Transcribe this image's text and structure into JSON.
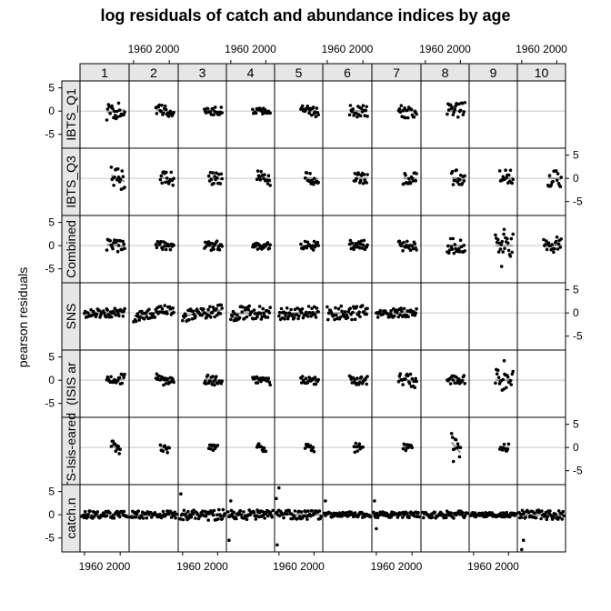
{
  "chart_data": {
    "type": "scatter",
    "title": "log residuals of catch and abundance indices by age",
    "ylabel": "pearson residuals",
    "xlabel": "",
    "ages": [
      "1",
      "2",
      "3",
      "4",
      "5",
      "6",
      "7",
      "8",
      "9",
      "10"
    ],
    "rows": [
      "IBTS_Q1",
      "IBTS_Q3",
      "Combined",
      "SNS",
      "(ISIS ar",
      "TS-Isis-eared",
      "catch.n"
    ],
    "x_ticks": [
      1960,
      2000
    ],
    "x_tick_labels": [
      "1960 2000",
      "1960 2000",
      "1960 2000",
      "1960 2000",
      "1960 2000"
    ],
    "y_ticks": [
      -5,
      0,
      5
    ],
    "y_tick_labels": [
      "-5",
      "0",
      "5"
    ],
    "xlim": [
      1955,
      2010
    ],
    "ylim": [
      -8,
      6.5
    ],
    "grid": "horizontal line at 0",
    "panels": [
      {
        "row": "IBTS_Q1",
        "age": "1",
        "years": [
          1985,
          2005
        ],
        "range": 1.8,
        "trend": -0.5
      },
      {
        "row": "IBTS_Q1",
        "age": "2",
        "years": [
          1985,
          2005
        ],
        "range": 1.2,
        "trend": 0.8
      },
      {
        "row": "IBTS_Q1",
        "age": "3",
        "years": [
          1985,
          2005
        ],
        "range": 1.0,
        "trend": 0.3
      },
      {
        "row": "IBTS_Q1",
        "age": "4",
        "years": [
          1985,
          2005
        ],
        "range": 0.6,
        "trend": 0.1
      },
      {
        "row": "IBTS_Q1",
        "age": "5",
        "years": [
          1985,
          2005
        ],
        "range": 1.0,
        "trend": 0.6
      },
      {
        "row": "IBTS_Q1",
        "age": "6",
        "years": [
          1985,
          2005
        ],
        "range": 1.3,
        "trend": 0.1
      },
      {
        "row": "IBTS_Q1",
        "age": "7",
        "years": [
          1985,
          2005
        ],
        "range": 1.8,
        "trend": -0.5
      },
      {
        "row": "IBTS_Q1",
        "age": "8",
        "years": [
          1985,
          2005
        ],
        "range": 2.0,
        "trend": 0.0
      },
      {
        "row": "IBTS_Q3",
        "age": "1",
        "years": [
          1990,
          2005
        ],
        "range": 2.2,
        "trend": 1.5
      },
      {
        "row": "IBTS_Q3",
        "age": "2",
        "years": [
          1990,
          2005
        ],
        "range": 1.5,
        "trend": 0.5
      },
      {
        "row": "IBTS_Q3",
        "age": "3",
        "years": [
          1990,
          2005
        ],
        "range": 1.5,
        "trend": 0.3
      },
      {
        "row": "IBTS_Q3",
        "age": "4",
        "years": [
          1990,
          2005
        ],
        "range": 1.5,
        "trend": 0.3
      },
      {
        "row": "IBTS_Q3",
        "age": "5",
        "years": [
          1990,
          2005
        ],
        "range": 1.5,
        "trend": 0.2
      },
      {
        "row": "IBTS_Q3",
        "age": "6",
        "years": [
          1990,
          2005
        ],
        "range": 1.2,
        "trend": 0.0
      },
      {
        "row": "IBTS_Q3",
        "age": "7",
        "years": [
          1990,
          2005
        ],
        "range": 1.3,
        "trend": 0.0
      },
      {
        "row": "IBTS_Q3",
        "age": "8",
        "years": [
          1990,
          2005
        ],
        "range": 1.8,
        "trend": 0.2
      },
      {
        "row": "IBTS_Q3",
        "age": "9",
        "years": [
          1990,
          2005
        ],
        "range": 1.8,
        "trend": -0.3
      },
      {
        "row": "IBTS_Q3",
        "age": "10",
        "years": [
          1990,
          2005
        ],
        "range": 1.8,
        "trend": 0.2
      },
      {
        "row": "Combined",
        "age": "1",
        "years": [
          1985,
          2005
        ],
        "range": 1.5,
        "trend": 0.5
      },
      {
        "row": "Combined",
        "age": "2",
        "years": [
          1985,
          2005
        ],
        "range": 1.0,
        "trend": 0.0
      },
      {
        "row": "Combined",
        "age": "3",
        "years": [
          1985,
          2005
        ],
        "range": 1.0,
        "trend": 0.0
      },
      {
        "row": "Combined",
        "age": "4",
        "years": [
          1985,
          2005
        ],
        "range": 0.8,
        "trend": 0.0
      },
      {
        "row": "Combined",
        "age": "5",
        "years": [
          1985,
          2005
        ],
        "range": 1.0,
        "trend": 0.0
      },
      {
        "row": "Combined",
        "age": "6",
        "years": [
          1985,
          2005
        ],
        "range": 1.2,
        "trend": 0.0
      },
      {
        "row": "Combined",
        "age": "7",
        "years": [
          1985,
          2005
        ],
        "range": 1.2,
        "trend": 0.0
      },
      {
        "row": "Combined",
        "age": "8",
        "years": [
          1985,
          2005
        ],
        "range": 1.8,
        "trend": 0.2
      },
      {
        "row": "Combined",
        "age": "9",
        "years": [
          1985,
          2005
        ],
        "range": 2.5,
        "trend": 0.0
      },
      {
        "row": "Combined",
        "age": "10",
        "years": [
          1985,
          2005
        ],
        "range": 1.8,
        "trend": -0.5
      },
      {
        "row": "SNS",
        "age": "1",
        "years": [
          1960,
          2005
        ],
        "range": 1.0,
        "trend": 0.0
      },
      {
        "row": "SNS",
        "age": "2",
        "years": [
          1960,
          2005
        ],
        "range": 1.2,
        "trend": -1.5
      },
      {
        "row": "SNS",
        "age": "3",
        "years": [
          1960,
          2005
        ],
        "range": 1.3,
        "trend": -1.5
      },
      {
        "row": "SNS",
        "age": "4",
        "years": [
          1960,
          2005
        ],
        "range": 1.5,
        "trend": -0.5
      },
      {
        "row": "SNS",
        "age": "5",
        "years": [
          1960,
          2005
        ],
        "range": 1.3,
        "trend": -0.5
      },
      {
        "row": "SNS",
        "age": "6",
        "years": [
          1960,
          2005
        ],
        "range": 1.5,
        "trend": -0.2
      },
      {
        "row": "SNS",
        "age": "7",
        "years": [
          1960,
          2005
        ],
        "range": 1.0,
        "trend": -0.7
      },
      {
        "row": "(ISIS ar",
        "age": "1",
        "years": [
          1985,
          2005
        ],
        "range": 1.2,
        "trend": -0.5
      },
      {
        "row": "(ISIS ar",
        "age": "2",
        "years": [
          1985,
          2005
        ],
        "range": 1.3,
        "trend": 0.2
      },
      {
        "row": "(ISIS ar",
        "age": "3",
        "years": [
          1985,
          2005
        ],
        "range": 1.0,
        "trend": 0.5
      },
      {
        "row": "(ISIS ar",
        "age": "4",
        "years": [
          1985,
          2005
        ],
        "range": 0.8,
        "trend": 0.5
      },
      {
        "row": "(ISIS ar",
        "age": "5",
        "years": [
          1985,
          2005
        ],
        "range": 0.8,
        "trend": 0.5
      },
      {
        "row": "(ISIS ar",
        "age": "6",
        "years": [
          1985,
          2005
        ],
        "range": 1.0,
        "trend": 0.0
      },
      {
        "row": "(ISIS ar",
        "age": "7",
        "years": [
          1985,
          2005
        ],
        "range": 1.5,
        "trend": 0.7
      },
      {
        "row": "(ISIS ar",
        "age": "8",
        "years": [
          1985,
          2005
        ],
        "range": 1.0,
        "trend": 0.0
      },
      {
        "row": "(ISIS ar",
        "age": "9",
        "years": [
          1985,
          2005
        ],
        "range": 2.5,
        "trend": 0.0
      },
      {
        "row": "TS-Isis-eared",
        "age": "1",
        "years": [
          1990,
          2000
        ],
        "range": 1.2,
        "trend": 1.0
      },
      {
        "row": "TS-Isis-eared",
        "age": "2",
        "years": [
          1990,
          2000
        ],
        "range": 1.0,
        "trend": 0.5
      },
      {
        "row": "TS-Isis-eared",
        "age": "3",
        "years": [
          1990,
          2000
        ],
        "range": 0.6,
        "trend": 0.0
      },
      {
        "row": "TS-Isis-eared",
        "age": "4",
        "years": [
          1990,
          2000
        ],
        "range": 0.8,
        "trend": 0.3
      },
      {
        "row": "TS-Isis-eared",
        "age": "5",
        "years": [
          1990,
          2000
        ],
        "range": 0.8,
        "trend": 0.3
      },
      {
        "row": "TS-Isis-eared",
        "age": "6",
        "years": [
          1990,
          2000
        ],
        "range": 1.0,
        "trend": 0.0
      },
      {
        "row": "TS-Isis-eared",
        "age": "7",
        "years": [
          1990,
          2000
        ],
        "range": 0.8,
        "trend": 0.3
      },
      {
        "row": "TS-Isis-eared",
        "age": "8",
        "years": [
          1990,
          2000
        ],
        "range": 1.8,
        "trend": 2.5
      },
      {
        "row": "TS-Isis-eared",
        "age": "9",
        "years": [
          1990,
          2000
        ],
        "range": 0.8,
        "trend": 0.0
      },
      {
        "row": "catch.n",
        "age": "1",
        "years": [
          1957,
          2008
        ],
        "range": 0.8,
        "trend": 0.0
      },
      {
        "row": "catch.n",
        "age": "2",
        "years": [
          1957,
          2008
        ],
        "range": 0.8,
        "trend": 0.0
      },
      {
        "row": "catch.n",
        "age": "3",
        "years": [
          1957,
          2008
        ],
        "range": 1.2,
        "trend": 0.0
      },
      {
        "row": "catch.n",
        "age": "4",
        "years": [
          1957,
          2008
        ],
        "range": 1.0,
        "trend": 0.0
      },
      {
        "row": "catch.n",
        "age": "5",
        "years": [
          1957,
          2008
        ],
        "range": 1.0,
        "trend": 0.0
      },
      {
        "row": "catch.n",
        "age": "6",
        "years": [
          1957,
          2008
        ],
        "range": 0.6,
        "trend": 0.0
      },
      {
        "row": "catch.n",
        "age": "7",
        "years": [
          1957,
          2008
        ],
        "range": 0.6,
        "trend": 0.0
      },
      {
        "row": "catch.n",
        "age": "8",
        "years": [
          1957,
          2008
        ],
        "range": 0.8,
        "trend": 0.0
      },
      {
        "row": "catch.n",
        "age": "9",
        "years": [
          1957,
          2008
        ],
        "range": 0.5,
        "trend": 0.0
      },
      {
        "row": "catch.n",
        "age": "10",
        "years": [
          1957,
          2008
        ],
        "range": 1.0,
        "trend": 0.0
      }
    ],
    "outliers": [
      {
        "row": "Combined",
        "age": "9",
        "year": 1995,
        "value": 3.5
      },
      {
        "row": "Combined",
        "age": "9",
        "year": 1992,
        "value": -4.5
      },
      {
        "row": "(ISIS ar",
        "age": "9",
        "year": 1995,
        "value": 4.2
      },
      {
        "row": "TS-Isis-eared",
        "age": "8",
        "year": 1992,
        "value": -3.0
      },
      {
        "row": "catch.n",
        "age": "3",
        "year": 1958,
        "value": 4.5
      },
      {
        "row": "catch.n",
        "age": "4",
        "year": 1958,
        "value": -5.5
      },
      {
        "row": "catch.n",
        "age": "4",
        "year": 1960,
        "value": 3.0
      },
      {
        "row": "catch.n",
        "age": "5",
        "year": 1958,
        "value": -6.5
      },
      {
        "row": "catch.n",
        "age": "5",
        "year": 1960,
        "value": 5.8
      },
      {
        "row": "catch.n",
        "age": "5",
        "year": 1957,
        "value": 3.5
      },
      {
        "row": "catch.n",
        "age": "6",
        "year": 1958,
        "value": 3.0
      },
      {
        "row": "catch.n",
        "age": "7",
        "year": 1958,
        "value": 3.0
      },
      {
        "row": "catch.n",
        "age": "7",
        "year": 1960,
        "value": -3.0
      },
      {
        "row": "catch.n",
        "age": "10",
        "year": 1960,
        "value": -7.5
      },
      {
        "row": "catch.n",
        "age": "10",
        "year": 1962,
        "value": -5.5
      }
    ]
  }
}
